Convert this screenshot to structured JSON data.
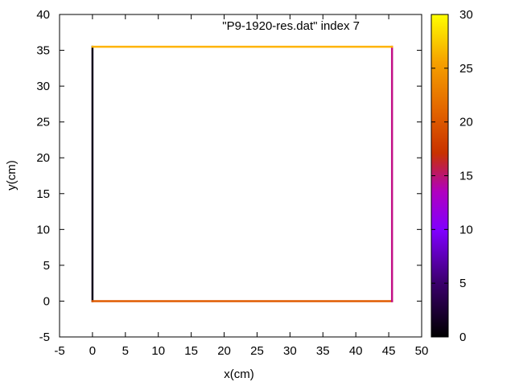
{
  "chart_data": {
    "type": "line",
    "legend": "\"P9-1920-res.dat\" index 7",
    "xlabel": "x(cm)",
    "ylabel": "y(cm)",
    "xlim": [
      -5,
      50
    ],
    "ylim": [
      -5,
      40
    ],
    "xticks": [
      -5,
      0,
      5,
      10,
      15,
      20,
      25,
      30,
      35,
      40,
      45,
      50
    ],
    "yticks": [
      -5,
      0,
      5,
      10,
      15,
      20,
      25,
      30,
      35,
      40
    ],
    "grid": false,
    "legend_position": "top-right",
    "colorbar": {
      "range": [
        0,
        30
      ],
      "ticks": [
        0,
        5,
        10,
        15,
        20,
        25,
        30
      ],
      "palette": "gnuplot pm3d (black-purple-red-orange-yellow)"
    },
    "segments": [
      {
        "x": [
          0,
          0
        ],
        "y": [
          0,
          35.5
        ],
        "c": 0.5
      },
      {
        "x": [
          0,
          45.5
        ],
        "y": [
          0,
          0
        ],
        "c": 18
      },
      {
        "x": [
          45.5,
          45.5
        ],
        "y": [
          0,
          35.5
        ],
        "c": 11.5
      },
      {
        "x": [
          0,
          45.5
        ],
        "y": [
          35.5,
          35.5
        ],
        "c": 25
      }
    ],
    "colors": {
      "frame": "#000000",
      "palette_stops": [
        "#000000",
        "#8000ff",
        "#c000c0",
        "#c83200",
        "#f07800",
        "#ffb400",
        "#ffff00"
      ]
    }
  }
}
